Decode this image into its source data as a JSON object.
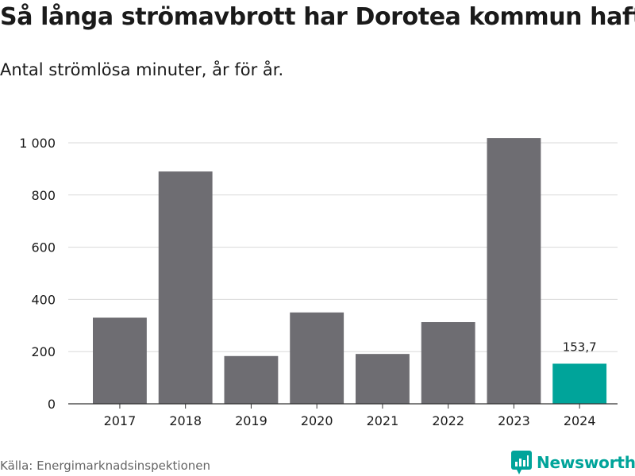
{
  "title": "Så långa strömavbrott har Dorotea kommun haft",
  "subtitle": "Antal strömlösa minuter, år för år.",
  "source": "Källa: Energimarknadsinspektionen",
  "brand": {
    "name": "Newsworthy",
    "icon": "newsworthy-logo-icon",
    "color": "#00a49a"
  },
  "chart_data": {
    "type": "bar",
    "title": "Så långa strömavbrott har Dorotea kommun haft",
    "subtitle": "Antal strömlösa minuter, år för år.",
    "xlabel": "",
    "ylabel": "",
    "categories": [
      "2017",
      "2018",
      "2019",
      "2020",
      "2021",
      "2022",
      "2023",
      "2024"
    ],
    "values": [
      330,
      890,
      183,
      350,
      191,
      313,
      1018,
      153.7
    ],
    "ylim": [
      0,
      1000
    ],
    "yticks": [
      0,
      200,
      400,
      600,
      800,
      1000
    ],
    "ytick_labels": [
      "0",
      "200",
      "400",
      "600",
      "800",
      "1 000"
    ],
    "grid": true,
    "highlight_index": 7,
    "bar_color": "#6e6d72",
    "highlight_color": "#00a49a",
    "data_labels": [
      {
        "index": 7,
        "text": "153,7"
      }
    ]
  }
}
